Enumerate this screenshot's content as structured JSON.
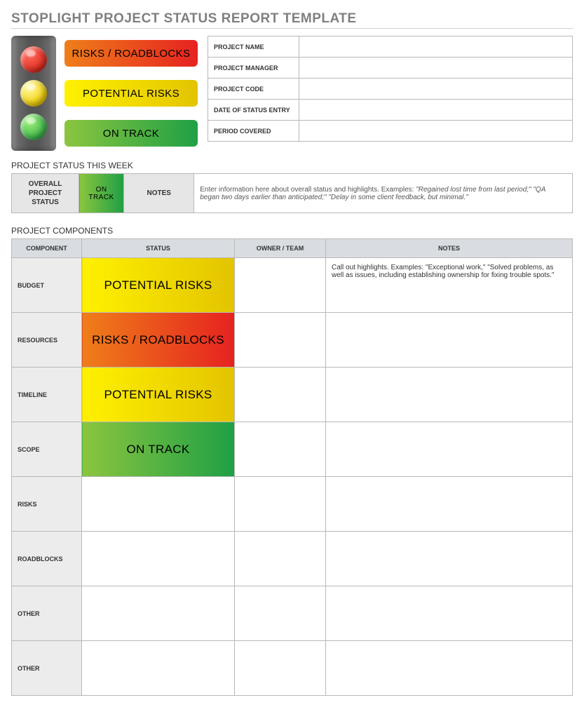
{
  "title": "STOPLIGHT PROJECT STATUS REPORT TEMPLATE",
  "colors": {
    "red": "#e02b20",
    "red_grad_a": "#ef7e1a",
    "red_grad_b": "#e62220",
    "yellow": "#f2cf00",
    "yellow_grad_a": "#fff100",
    "yellow_grad_b": "#e3c400",
    "green": "#3bb54a",
    "green_grad_a": "#8bc53f",
    "green_grad_b": "#1fa045",
    "header_gray": "#d9dde2",
    "label_gray": "#e6e6e6",
    "row_gray": "#ececec"
  },
  "legend": {
    "red": "RISKS / ROADBLOCKS",
    "yellow": "POTENTIAL RISKS",
    "green": "ON TRACK"
  },
  "meta": [
    {
      "k": "PROJECT NAME",
      "v": ""
    },
    {
      "k": "PROJECT MANAGER",
      "v": ""
    },
    {
      "k": "PROJECT CODE",
      "v": ""
    },
    {
      "k": "DATE OF STATUS ENTRY",
      "v": ""
    },
    {
      "k": "PERIOD COVERED",
      "v": ""
    }
  ],
  "status_week": {
    "heading": "PROJECT STATUS THIS WEEK",
    "overall_label": "OVERALL PROJECT STATUS",
    "status_text": "ON TRACK",
    "status_color": "green",
    "notes_label": "NOTES",
    "notes_text": "Enter information here about overall status and highlights. Examples: \"Regained lost time from last period;\" \"QA began two days earlier than anticipated;\" \"Delay in some client feedback, but minimal.\""
  },
  "components": {
    "heading": "PROJECT COMPONENTS",
    "columns": [
      "COMPONENT",
      "STATUS",
      "OWNER / TEAM",
      "NOTES"
    ],
    "rows": [
      {
        "label": "BUDGET",
        "status": "POTENTIAL RISKS",
        "color": "yellow",
        "owner": "",
        "notes": "Call out highlights. Examples: \"Exceptional work,\" \"Solved problems, as well as issues, including establishing ownership for fixing trouble spots.\""
      },
      {
        "label": "RESOURCES",
        "status": "RISKS / ROADBLOCKS",
        "color": "red",
        "owner": "",
        "notes": ""
      },
      {
        "label": "TIMELINE",
        "status": "POTENTIAL RISKS",
        "color": "yellow",
        "owner": "",
        "notes": ""
      },
      {
        "label": "SCOPE",
        "status": "ON TRACK",
        "color": "green",
        "owner": "",
        "notes": ""
      },
      {
        "label": "RISKS",
        "status": "",
        "color": "",
        "owner": "",
        "notes": ""
      },
      {
        "label": "ROADBLOCKS",
        "status": "",
        "color": "",
        "owner": "",
        "notes": ""
      },
      {
        "label": "OTHER",
        "status": "",
        "color": "",
        "owner": "",
        "notes": ""
      },
      {
        "label": "OTHER",
        "status": "",
        "color": "",
        "owner": "",
        "notes": ""
      }
    ]
  }
}
